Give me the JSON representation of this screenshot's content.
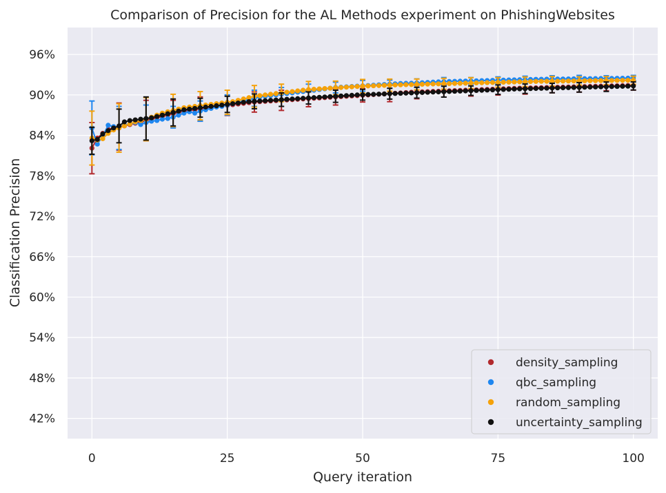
{
  "chart_data": {
    "type": "scatter",
    "title": "Comparison of Precision for the AL Methods experiment on PhishingWebsites",
    "xlabel": "Query iteration",
    "ylabel": "Classification Precision",
    "xlim": [
      -4.5,
      104.5
    ],
    "ylim": [
      39,
      100
    ],
    "x_ticks": [
      0,
      25,
      50,
      75,
      100
    ],
    "x_tick_labels": [
      "0",
      "25",
      "50",
      "75",
      "100"
    ],
    "y_ticks": [
      42,
      48,
      54,
      60,
      66,
      72,
      78,
      84,
      90,
      96
    ],
    "y_tick_labels": [
      "42%",
      "48%",
      "54%",
      "60%",
      "66%",
      "72%",
      "78%",
      "84%",
      "90%",
      "96%"
    ],
    "grid": true,
    "legend_position": "lower-right",
    "x": [
      0,
      1,
      2,
      3,
      4,
      5,
      6,
      7,
      8,
      9,
      10,
      11,
      12,
      13,
      14,
      15,
      16,
      17,
      18,
      19,
      20,
      21,
      22,
      23,
      24,
      25,
      26,
      27,
      28,
      29,
      30,
      31,
      32,
      33,
      34,
      35,
      36,
      37,
      38,
      39,
      40,
      41,
      42,
      43,
      44,
      45,
      46,
      47,
      48,
      49,
      50,
      51,
      52,
      53,
      54,
      55,
      56,
      57,
      58,
      59,
      60,
      61,
      62,
      63,
      64,
      65,
      66,
      67,
      68,
      69,
      70,
      71,
      72,
      73,
      74,
      75,
      76,
      77,
      78,
      79,
      80,
      81,
      82,
      83,
      84,
      85,
      86,
      87,
      88,
      89,
      90,
      91,
      92,
      93,
      94,
      95,
      96,
      97,
      98,
      99,
      100
    ],
    "series": [
      {
        "name": "density_sampling",
        "color": "#b22a2e",
        "values": [
          82.1,
          83.6,
          84.3,
          84.9,
          85.1,
          85.3,
          85.4,
          85.6,
          85.8,
          86,
          86.2,
          86.4,
          86.6,
          86.8,
          87,
          87.2,
          87.4,
          87.6,
          87.7,
          87.8,
          87.9,
          88.05,
          88.15,
          88.25,
          88.35,
          88.45,
          88.55,
          88.65,
          88.75,
          88.85,
          88.95,
          89.0,
          89.05,
          89.1,
          89.15,
          89.2,
          89.25,
          89.3,
          89.35,
          89.4,
          89.45,
          89.5,
          89.55,
          89.6,
          89.65,
          89.7,
          89.75,
          89.8,
          89.85,
          89.9,
          89.95,
          90.0,
          90.05,
          90.1,
          90.15,
          90.2,
          90.25,
          90.3,
          90.35,
          90.4,
          90.43,
          90.46,
          90.49,
          90.52,
          90.55,
          90.58,
          90.61,
          90.64,
          90.67,
          90.7,
          90.73,
          90.76,
          90.79,
          90.82,
          90.85,
          90.88,
          90.91,
          90.94,
          90.97,
          91.0,
          91.02,
          91.04,
          91.06,
          91.08,
          91.1,
          91.12,
          91.14,
          91.16,
          91.18,
          91.2,
          91.22,
          91.24,
          91.26,
          91.28,
          91.3,
          91.32,
          91.34,
          91.36,
          91.38,
          91.4,
          91.42
        ],
        "errors": [
          {
            "x": 0,
            "err": 3.8
          },
          {
            "x": 5,
            "err": 3.5
          },
          {
            "x": 10,
            "err": 3.0
          },
          {
            "x": 15,
            "err": 2.0
          },
          {
            "x": 20,
            "err": 1.8
          },
          {
            "x": 25,
            "err": 1.5
          },
          {
            "x": 30,
            "err": 1.5
          },
          {
            "x": 35,
            "err": 1.5
          },
          {
            "x": 40,
            "err": 1.2
          },
          {
            "x": 45,
            "err": 1.2
          },
          {
            "x": 50,
            "err": 1.0
          },
          {
            "x": 55,
            "err": 1.2
          },
          {
            "x": 60,
            "err": 1.0
          },
          {
            "x": 65,
            "err": 0.9
          },
          {
            "x": 70,
            "err": 0.9
          },
          {
            "x": 75,
            "err": 0.9
          },
          {
            "x": 80,
            "err": 0.9
          },
          {
            "x": 85,
            "err": 0.8
          },
          {
            "x": 90,
            "err": 0.8
          },
          {
            "x": 95,
            "err": 0.7
          },
          {
            "x": 100,
            "err": 0.7
          }
        ]
      },
      {
        "name": "qbc_sampling",
        "color": "#1f87f0",
        "values": [
          85.1,
          82.7,
          83.9,
          85.5,
          85.3,
          85.1,
          85.5,
          85.7,
          85.9,
          85.6,
          85.9,
          86.1,
          86.2,
          86.4,
          86.5,
          86.7,
          87.0,
          87.3,
          87.5,
          87.3,
          87.6,
          87.8,
          88.0,
          88.2,
          88.3,
          88.5,
          88.7,
          88.9,
          89.1,
          89.3,
          89.5,
          89.7,
          89.8,
          89.9,
          90.0,
          90.1,
          90.2,
          90.3,
          90.4,
          90.5,
          90.6,
          90.7,
          90.8,
          90.9,
          91.0,
          91.1,
          91.15,
          91.2,
          91.25,
          91.3,
          91.35,
          91.4,
          91.45,
          91.5,
          91.55,
          91.6,
          91.65,
          91.7,
          91.72,
          91.74,
          91.78,
          91.82,
          91.86,
          91.9,
          91.94,
          91.98,
          92.0,
          92.02,
          92.04,
          92.06,
          92.08,
          92.1,
          92.12,
          92.14,
          92.16,
          92.18,
          92.2,
          92.22,
          92.24,
          92.26,
          92.28,
          92.3,
          92.32,
          92.33,
          92.34,
          92.35,
          92.36,
          92.37,
          92.38,
          92.39,
          92.4,
          92.41,
          92.42,
          92.43,
          92.44,
          92.45,
          92.46,
          92.47,
          92.48,
          92.49,
          92.5
        ],
        "errors": [
          {
            "x": 0,
            "err": 4.0
          },
          {
            "x": 5,
            "err": 3.2
          },
          {
            "x": 10,
            "err": 2.6
          },
          {
            "x": 15,
            "err": 1.6
          },
          {
            "x": 20,
            "err": 1.5
          },
          {
            "x": 25,
            "err": 1.5
          },
          {
            "x": 30,
            "err": 1.2
          },
          {
            "x": 35,
            "err": 1.0
          },
          {
            "x": 40,
            "err": 1.0
          },
          {
            "x": 45,
            "err": 0.8
          },
          {
            "x": 50,
            "err": 0.8
          },
          {
            "x": 55,
            "err": 0.6
          },
          {
            "x": 60,
            "err": 0.6
          },
          {
            "x": 65,
            "err": 0.6
          },
          {
            "x": 70,
            "err": 0.5
          },
          {
            "x": 75,
            "err": 0.5
          },
          {
            "x": 80,
            "err": 0.5
          },
          {
            "x": 85,
            "err": 0.5
          },
          {
            "x": 90,
            "err": 0.5
          },
          {
            "x": 95,
            "err": 0.4
          },
          {
            "x": 100,
            "err": 0.4
          }
        ]
      },
      {
        "name": "random_sampling",
        "color": "#f5a20b",
        "values": [
          83.6,
          83.3,
          83.5,
          84.3,
          84.8,
          85.1,
          85.4,
          85.7,
          86.0,
          86.2,
          86.4,
          86.7,
          87.0,
          87.3,
          87.5,
          87.7,
          87.9,
          88.1,
          88.2,
          88.3,
          88.4,
          88.5,
          88.6,
          88.7,
          88.8,
          88.9,
          89.0,
          89.2,
          89.4,
          89.6,
          89.8,
          89.9,
          90.0,
          90.1,
          90.2,
          90.3,
          90.4,
          90.5,
          90.6,
          90.7,
          90.8,
          90.85,
          90.9,
          90.95,
          91.0,
          91.05,
          91.1,
          91.15,
          91.2,
          91.25,
          91.3,
          91.33,
          91.36,
          91.39,
          91.42,
          91.45,
          91.48,
          91.5,
          91.52,
          91.54,
          91.56,
          91.58,
          91.6,
          91.62,
          91.64,
          91.66,
          91.68,
          91.7,
          91.72,
          91.74,
          91.76,
          91.78,
          91.8,
          91.82,
          91.84,
          91.86,
          91.88,
          91.9,
          91.92,
          91.94,
          91.96,
          91.98,
          92.0,
          92.01,
          92.02,
          92.03,
          92.04,
          92.05,
          92.06,
          92.07,
          92.08,
          92.09,
          92.1,
          92.11,
          92.12,
          92.13,
          92.14,
          92.15,
          92.16,
          92.17,
          92.18
        ],
        "errors": [
          {
            "x": 0,
            "err": 4.0
          },
          {
            "x": 5,
            "err": 3.6
          },
          {
            "x": 10,
            "err": 3.2
          },
          {
            "x": 15,
            "err": 2.4
          },
          {
            "x": 20,
            "err": 2.1
          },
          {
            "x": 25,
            "err": 1.8
          },
          {
            "x": 30,
            "err": 1.6
          },
          {
            "x": 35,
            "err": 1.3
          },
          {
            "x": 40,
            "err": 1.2
          },
          {
            "x": 45,
            "err": 1.0
          },
          {
            "x": 50,
            "err": 1.0
          },
          {
            "x": 55,
            "err": 0.9
          },
          {
            "x": 60,
            "err": 0.8
          },
          {
            "x": 65,
            "err": 0.8
          },
          {
            "x": 70,
            "err": 0.8
          },
          {
            "x": 75,
            "err": 0.7
          },
          {
            "x": 80,
            "err": 0.7
          },
          {
            "x": 85,
            "err": 0.7
          },
          {
            "x": 90,
            "err": 0.6
          },
          {
            "x": 95,
            "err": 0.6
          },
          {
            "x": 100,
            "err": 0.6
          }
        ]
      },
      {
        "name": "uncertainty_sampling",
        "color": "#111111",
        "values": [
          83.2,
          83.4,
          84.2,
          84.7,
          85.1,
          85.4,
          86.0,
          86.2,
          86.3,
          86.4,
          86.5,
          86.6,
          86.8,
          87.0,
          87.2,
          87.4,
          87.6,
          87.8,
          87.9,
          88.0,
          88.1,
          88.2,
          88.3,
          88.4,
          88.5,
          88.6,
          88.7,
          88.8,
          88.9,
          89.0,
          89.05,
          89.1,
          89.15,
          89.2,
          89.25,
          89.3,
          89.35,
          89.4,
          89.45,
          89.5,
          89.55,
          89.6,
          89.65,
          89.7,
          89.75,
          89.8,
          89.85,
          89.9,
          89.95,
          90.0,
          90.03,
          90.06,
          90.09,
          90.12,
          90.15,
          90.18,
          90.21,
          90.24,
          90.27,
          90.3,
          90.33,
          90.36,
          90.39,
          90.42,
          90.45,
          90.48,
          90.51,
          90.54,
          90.57,
          90.6,
          90.63,
          90.66,
          90.69,
          90.72,
          90.75,
          90.78,
          90.81,
          90.84,
          90.87,
          90.9,
          90.92,
          90.94,
          90.96,
          90.98,
          91.0,
          91.02,
          91.04,
          91.06,
          91.08,
          91.1,
          91.12,
          91.14,
          91.16,
          91.18,
          91.2,
          91.22,
          91.24,
          91.26,
          91.28,
          91.3,
          91.33
        ],
        "errors": [
          {
            "x": 0,
            "err": 2.0
          },
          {
            "x": 5,
            "err": 2.5
          },
          {
            "x": 10,
            "err": 3.2
          },
          {
            "x": 15,
            "err": 2.0
          },
          {
            "x": 20,
            "err": 1.4
          },
          {
            "x": 25,
            "err": 1.2
          },
          {
            "x": 30,
            "err": 1.1
          },
          {
            "x": 35,
            "err": 1.0
          },
          {
            "x": 40,
            "err": 0.9
          },
          {
            "x": 45,
            "err": 0.9
          },
          {
            "x": 50,
            "err": 0.8
          },
          {
            "x": 55,
            "err": 0.8
          },
          {
            "x": 60,
            "err": 0.8
          },
          {
            "x": 65,
            "err": 0.8
          },
          {
            "x": 70,
            "err": 0.7
          },
          {
            "x": 75,
            "err": 0.7
          },
          {
            "x": 80,
            "err": 0.7
          },
          {
            "x": 85,
            "err": 0.7
          },
          {
            "x": 90,
            "err": 0.7
          },
          {
            "x": 95,
            "err": 0.7
          },
          {
            "x": 100,
            "err": 0.6
          }
        ]
      }
    ]
  }
}
